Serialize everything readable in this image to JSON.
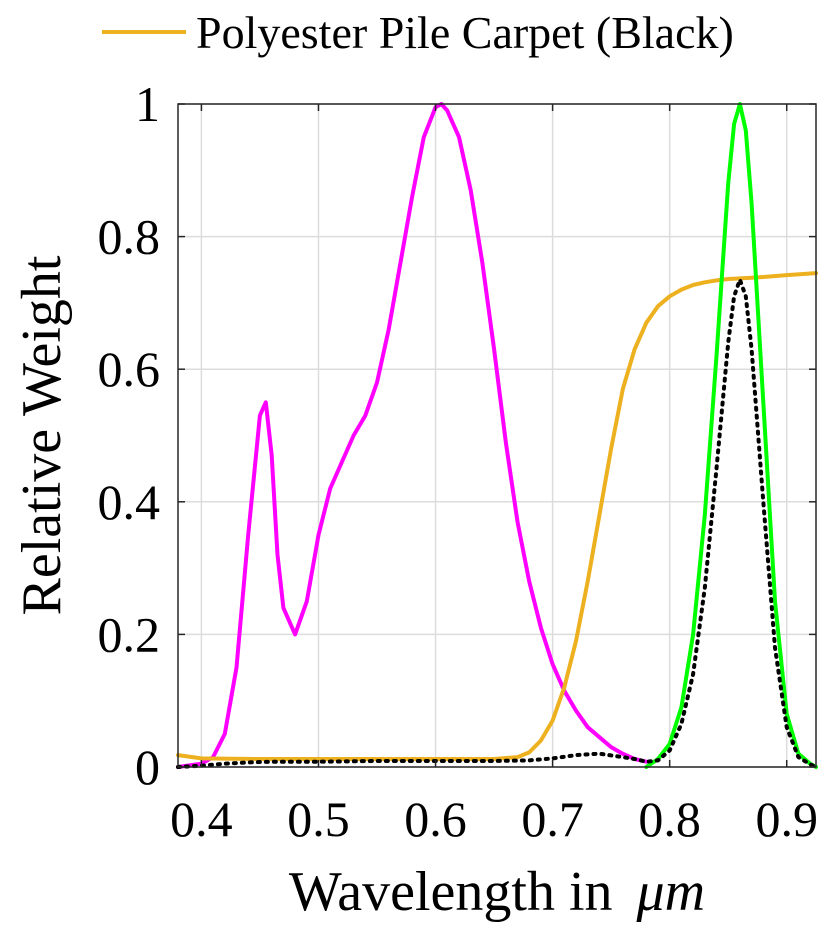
{
  "chart_data": {
    "type": "line",
    "xlabel": "Wavelength in",
    "xlabel_unit": "μm",
    "ylabel": "Relative Weight",
    "xlim": [
      0.38,
      0.925
    ],
    "ylim": [
      0,
      1
    ],
    "xticks": [
      0.4,
      0.5,
      0.6,
      0.7,
      0.8,
      0.9
    ],
    "xtick_labels": [
      "0.4",
      "0.5",
      "0.6",
      "0.7",
      "0.8",
      "0.9"
    ],
    "yticks": [
      0,
      0.2,
      0.4,
      0.6,
      0.8,
      1
    ],
    "ytick_labels": [
      "0",
      "0.2",
      "0.4",
      "0.6",
      "0.8",
      "1"
    ],
    "grid": true,
    "legend_position": "top",
    "series": [
      {
        "name": "",
        "color": "#ff00ff",
        "style": "solid",
        "x": [
          0.38,
          0.4,
          0.41,
          0.42,
          0.43,
          0.44,
          0.45,
          0.455,
          0.46,
          0.465,
          0.47,
          0.48,
          0.49,
          0.5,
          0.51,
          0.52,
          0.53,
          0.54,
          0.55,
          0.56,
          0.57,
          0.58,
          0.59,
          0.6,
          0.605,
          0.61,
          0.62,
          0.63,
          0.64,
          0.65,
          0.66,
          0.67,
          0.68,
          0.69,
          0.7,
          0.71,
          0.72,
          0.73,
          0.74,
          0.75,
          0.76,
          0.77,
          0.78
        ],
        "y": [
          0.0,
          0.005,
          0.015,
          0.05,
          0.15,
          0.35,
          0.53,
          0.55,
          0.47,
          0.32,
          0.24,
          0.2,
          0.25,
          0.35,
          0.42,
          0.46,
          0.5,
          0.53,
          0.58,
          0.66,
          0.76,
          0.86,
          0.95,
          0.995,
          1.0,
          0.99,
          0.95,
          0.87,
          0.76,
          0.63,
          0.49,
          0.37,
          0.28,
          0.21,
          0.155,
          0.115,
          0.085,
          0.06,
          0.045,
          0.03,
          0.02,
          0.012,
          0.008
        ]
      },
      {
        "name": "Polyester Pile Carpet (Black)",
        "color": "#edb120",
        "style": "solid",
        "x": [
          0.38,
          0.4,
          0.45,
          0.5,
          0.55,
          0.6,
          0.65,
          0.67,
          0.68,
          0.69,
          0.7,
          0.71,
          0.72,
          0.73,
          0.74,
          0.75,
          0.76,
          0.77,
          0.78,
          0.79,
          0.8,
          0.81,
          0.82,
          0.83,
          0.84,
          0.85,
          0.86,
          0.87,
          0.88,
          0.9,
          0.925
        ],
        "y": [
          0.018,
          0.013,
          0.012,
          0.012,
          0.012,
          0.012,
          0.012,
          0.015,
          0.022,
          0.04,
          0.07,
          0.12,
          0.19,
          0.28,
          0.38,
          0.48,
          0.57,
          0.63,
          0.67,
          0.695,
          0.71,
          0.72,
          0.727,
          0.731,
          0.734,
          0.736,
          0.737,
          0.738,
          0.739,
          0.742,
          0.745
        ]
      },
      {
        "name": "",
        "color": "#00ff00",
        "style": "solid",
        "x": [
          0.78,
          0.79,
          0.8,
          0.81,
          0.82,
          0.83,
          0.84,
          0.85,
          0.855,
          0.86,
          0.865,
          0.87,
          0.88,
          0.89,
          0.9,
          0.91,
          0.92,
          0.925
        ],
        "y": [
          0.0,
          0.012,
          0.035,
          0.09,
          0.2,
          0.38,
          0.62,
          0.88,
          0.97,
          1.0,
          0.96,
          0.85,
          0.55,
          0.25,
          0.08,
          0.02,
          0.005,
          0.0
        ]
      },
      {
        "name": "",
        "color": "#000000",
        "style": "dotted",
        "x": [
          0.38,
          0.4,
          0.42,
          0.44,
          0.46,
          0.5,
          0.55,
          0.6,
          0.65,
          0.68,
          0.7,
          0.72,
          0.74,
          0.76,
          0.77,
          0.78,
          0.79,
          0.8,
          0.81,
          0.82,
          0.83,
          0.84,
          0.85,
          0.855,
          0.86,
          0.865,
          0.87,
          0.88,
          0.89,
          0.9,
          0.91,
          0.92,
          0.925
        ],
        "y": [
          0.0,
          0.002,
          0.005,
          0.007,
          0.008,
          0.008,
          0.009,
          0.009,
          0.009,
          0.01,
          0.013,
          0.018,
          0.02,
          0.015,
          0.012,
          0.008,
          0.01,
          0.025,
          0.065,
          0.14,
          0.27,
          0.45,
          0.64,
          0.71,
          0.735,
          0.71,
          0.63,
          0.4,
          0.18,
          0.06,
          0.015,
          0.004,
          0.0
        ]
      }
    ]
  }
}
